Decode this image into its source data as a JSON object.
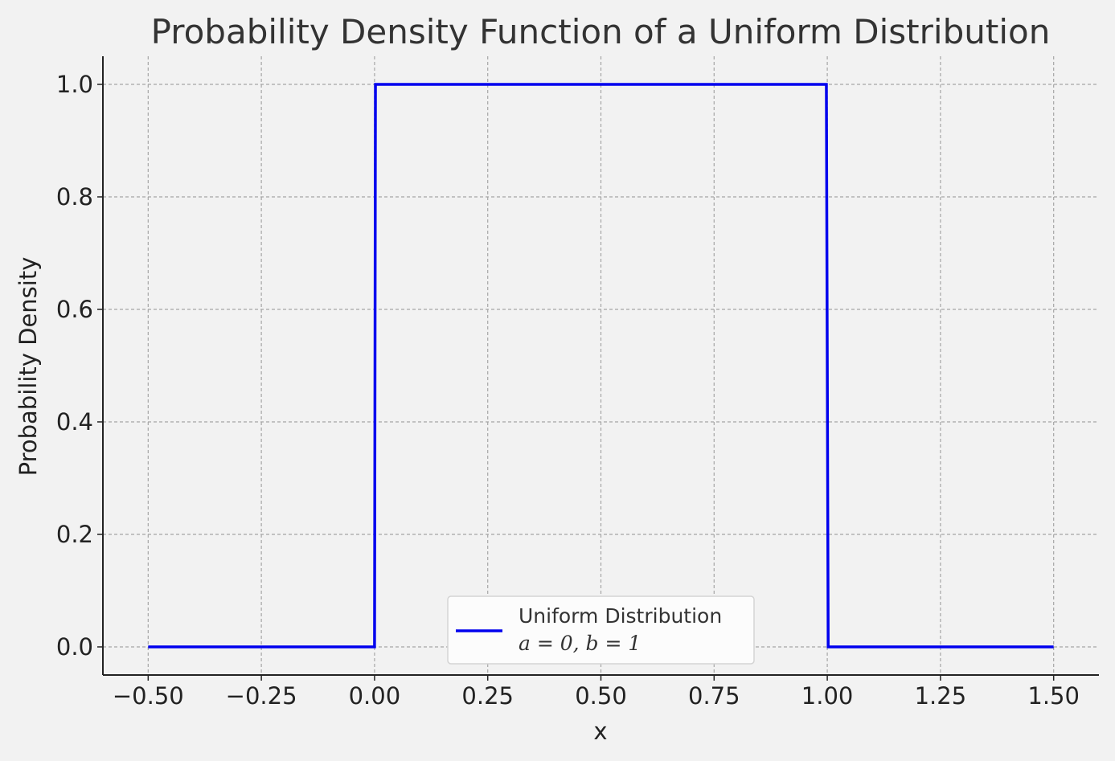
{
  "chart_data": {
    "type": "line",
    "title": "Probability Density Function of a Uniform Distribution",
    "xlabel": "x",
    "ylabel": "Probability Density",
    "xlim": [
      -0.6,
      1.6
    ],
    "ylim": [
      -0.05,
      1.05
    ],
    "xticks": [
      -0.5,
      -0.25,
      0.0,
      0.25,
      0.5,
      0.75,
      1.0,
      1.25,
      1.5
    ],
    "xtick_labels": [
      "−0.50",
      "−0.25",
      "0.00",
      "0.25",
      "0.50",
      "0.75",
      "1.00",
      "1.25",
      "1.50"
    ],
    "yticks": [
      0.0,
      0.2,
      0.4,
      0.6,
      0.8,
      1.0
    ],
    "ytick_labels": [
      "0.0",
      "0.2",
      "0.4",
      "0.6",
      "0.8",
      "1.0"
    ],
    "grid": true,
    "legend_position": "lower-center",
    "series": [
      {
        "name": "Uniform Distribution",
        "name_line2": "a = 0, b = 1",
        "color": "#0000ee",
        "x": [
          -0.5,
          0.0,
          0.002,
          0.998,
          1.002,
          1.5
        ],
        "y": [
          0.0,
          0.0,
          1.0,
          1.0,
          0.0,
          0.0
        ]
      }
    ]
  }
}
